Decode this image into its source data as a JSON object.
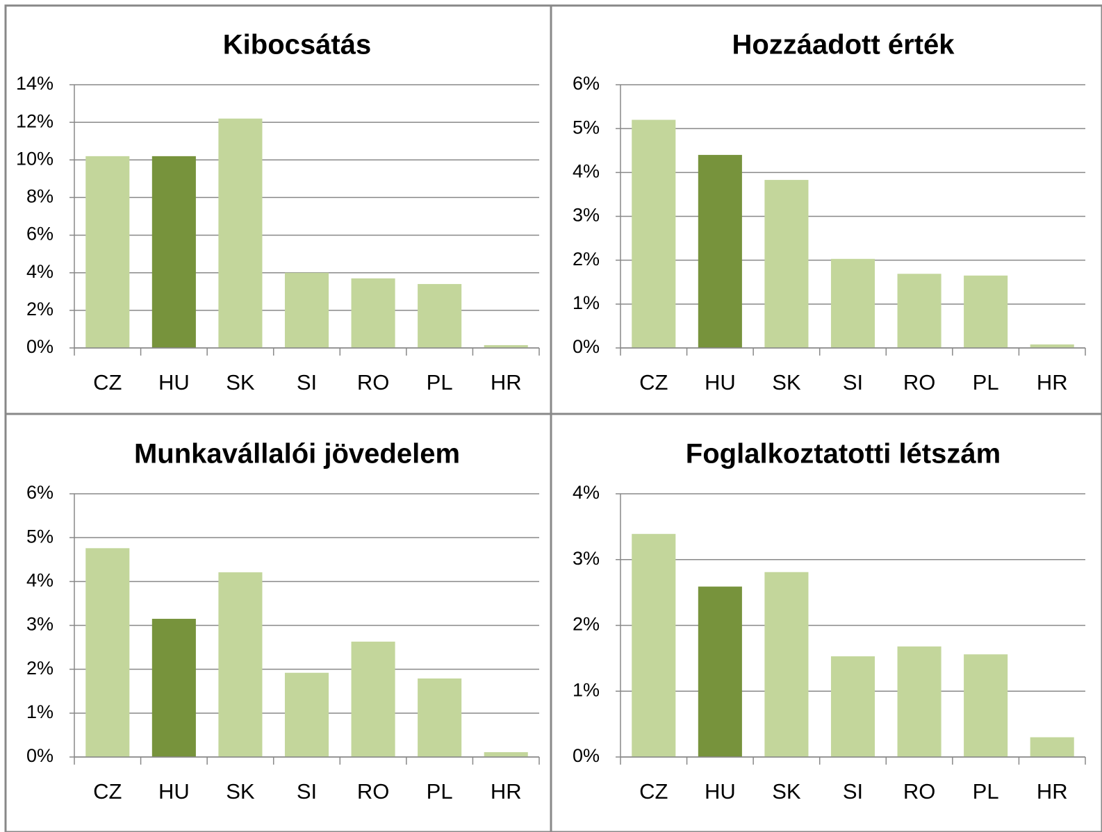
{
  "chart_data": [
    {
      "type": "bar",
      "title": "Kibocsátás",
      "categories": [
        "CZ",
        "HU",
        "SK",
        "SI",
        "RO",
        "PL",
        "HR"
      ],
      "values": [
        10.2,
        10.2,
        12.2,
        4.0,
        3.7,
        3.4,
        0.15
      ],
      "colors": [
        "#c3d69b",
        "#77933c",
        "#c3d69b",
        "#c3d69b",
        "#c3d69b",
        "#c3d69b",
        "#c3d69b"
      ],
      "ylim": [
        0,
        14
      ],
      "yticks": [
        {
          "value": 0,
          "label": "0%"
        },
        {
          "value": 2,
          "label": "2%"
        },
        {
          "value": 4,
          "label": "4%"
        },
        {
          "value": 6,
          "label": "6%"
        },
        {
          "value": 8,
          "label": "8%"
        },
        {
          "value": 10,
          "label": "10%"
        },
        {
          "value": 12,
          "label": "12%"
        },
        {
          "value": 14,
          "label": "14%"
        }
      ],
      "grid": true
    },
    {
      "type": "bar",
      "title": "Hozzáadott érték",
      "categories": [
        "CZ",
        "HU",
        "SK",
        "SI",
        "RO",
        "PL",
        "HR"
      ],
      "values": [
        5.2,
        4.4,
        3.83,
        2.03,
        1.69,
        1.65,
        0.08
      ],
      "colors": [
        "#c3d69b",
        "#77933c",
        "#c3d69b",
        "#c3d69b",
        "#c3d69b",
        "#c3d69b",
        "#c3d69b"
      ],
      "ylim": [
        0,
        6
      ],
      "yticks": [
        {
          "value": 0,
          "label": "0%"
        },
        {
          "value": 1,
          "label": "1%"
        },
        {
          "value": 2,
          "label": "2%"
        },
        {
          "value": 3,
          "label": "3%"
        },
        {
          "value": 4,
          "label": "4%"
        },
        {
          "value": 5,
          "label": "5%"
        },
        {
          "value": 6,
          "label": "6%"
        }
      ],
      "grid": true
    },
    {
      "type": "bar",
      "title": "Munkavállalói jövedelem",
      "categories": [
        "CZ",
        "HU",
        "SK",
        "SI",
        "RO",
        "PL",
        "HR"
      ],
      "values": [
        4.76,
        3.15,
        4.21,
        1.92,
        2.63,
        1.79,
        0.11
      ],
      "colors": [
        "#c3d69b",
        "#77933c",
        "#c3d69b",
        "#c3d69b",
        "#c3d69b",
        "#c3d69b",
        "#c3d69b"
      ],
      "ylim": [
        0,
        6
      ],
      "yticks": [
        {
          "value": 0,
          "label": "0%"
        },
        {
          "value": 1,
          "label": "1%"
        },
        {
          "value": 2,
          "label": "2%"
        },
        {
          "value": 3,
          "label": "3%"
        },
        {
          "value": 4,
          "label": "4%"
        },
        {
          "value": 5,
          "label": "5%"
        },
        {
          "value": 6,
          "label": "6%"
        }
      ],
      "grid": true
    },
    {
      "type": "bar",
      "title": "Foglalkoztatotti létszám",
      "categories": [
        "CZ",
        "HU",
        "SK",
        "SI",
        "RO",
        "PL",
        "HR"
      ],
      "values": [
        3.39,
        2.59,
        2.81,
        1.53,
        1.68,
        1.56,
        0.3
      ],
      "colors": [
        "#c3d69b",
        "#77933c",
        "#c3d69b",
        "#c3d69b",
        "#c3d69b",
        "#c3d69b",
        "#c3d69b"
      ],
      "ylim": [
        0,
        4
      ],
      "yticks": [
        {
          "value": 0,
          "label": "0%"
        },
        {
          "value": 1,
          "label": "1%"
        },
        {
          "value": 2,
          "label": "2%"
        },
        {
          "value": 3,
          "label": "3%"
        },
        {
          "value": 4,
          "label": "4%"
        }
      ],
      "grid": true
    }
  ]
}
